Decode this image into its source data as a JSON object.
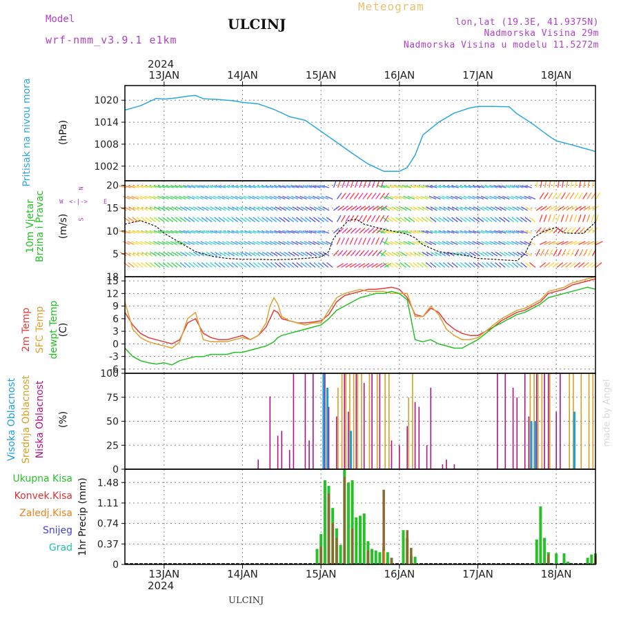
{
  "header": {
    "model_label": "Model",
    "model_name": "wrf-nmm_v3.9.1 e1km",
    "station": "ULCINJ",
    "meteogram_label": "Meteogram",
    "lonlat": "lon,lat (19.3E, 41.9375N)",
    "elev": "Nadmorska Visina 29m",
    "elev_model": "Nadmorska Visina u modelu 11.5272m",
    "year_top": "2024",
    "year_bottom": "2024",
    "footer_station": "ULCINJ",
    "watermark": "made by Angel"
  },
  "colors": {
    "pressure": "#2aa7e0",
    "temp2m": "#e83a3a",
    "sfc_temp": "#e0a030",
    "dewpoint": "#22c022",
    "wind_speed": "#111111",
    "high_cloud": "#1aa0e0",
    "mid_cloud": "#d6a020",
    "low_cloud": "#b0108a",
    "total_precip": "#28c028",
    "conv_precip": "#e03030",
    "strat_precip": "#f08020",
    "snow": "#4040e0",
    "graupel": "#20c0b0"
  },
  "panel_labels": {
    "pressure": [
      "Pritisak na nivou mora",
      "(hPa)"
    ],
    "wind": [
      "10m Vjetar",
      "Brzina i Pravac",
      "(m/s)"
    ],
    "wind_compass": {
      "n": "N",
      "s": "S",
      "w": "W",
      "e": "E"
    },
    "temp": [
      "2m Temp",
      "SFC Temp",
      "dewpt Temp",
      "(C)"
    ],
    "cloud": [
      "Visoka Oblacnost",
      "Srednja Oblacnost",
      "Niska Oblacnost",
      "(%)"
    ],
    "precip_unit": "1hr Precip (mm)",
    "precip_legend": [
      "Ukupna Kisa",
      "Konvek.Kisa",
      "Zaledj.Kisa",
      "Snijeg",
      "Grad"
    ]
  },
  "chart_data": [
    {
      "type": "line",
      "name": "pressure",
      "x_days": [
        12.5,
        12.7,
        12.9,
        13.0,
        13.15,
        13.3,
        13.4,
        13.5,
        13.7,
        13.9,
        14.0,
        14.2,
        14.4,
        14.6,
        14.8,
        15.0,
        15.2,
        15.4,
        15.6,
        15.8,
        16.0,
        16.1,
        16.2,
        16.3,
        16.5,
        16.7,
        16.9,
        17.0,
        17.2,
        17.4,
        17.5,
        17.7,
        17.9,
        18.0,
        18.2,
        18.5
      ],
      "values": [
        1017.3,
        1018.5,
        1020.5,
        1020.3,
        1020.6,
        1021.1,
        1021.3,
        1020.4,
        1020.2,
        1019.8,
        1019.4,
        1019.0,
        1017.5,
        1015.5,
        1014.5,
        1011.5,
        1008.5,
        1005.5,
        1002.6,
        1000.6,
        1000.6,
        1001.6,
        1005.0,
        1010.5,
        1014.0,
        1016.5,
        1017.9,
        1018.3,
        1018.3,
        1018.2,
        1016.3,
        1013.5,
        1010.3,
        1008.9,
        1007.8,
        1006.0
      ],
      "ylim": [
        998,
        1024
      ],
      "yticks": [
        1002,
        1008,
        1014,
        1020
      ]
    },
    {
      "type": "line",
      "name": "wind_speed",
      "x_days": [
        12.5,
        12.7,
        12.9,
        13.0,
        13.2,
        13.4,
        13.6,
        13.8,
        14.0,
        14.2,
        14.4,
        14.6,
        14.8,
        15.0,
        15.1,
        15.15,
        15.25,
        15.35,
        15.45,
        15.55,
        15.7,
        15.85,
        16.0,
        16.1,
        16.2,
        16.3,
        16.5,
        16.7,
        16.9,
        17.0,
        17.2,
        17.4,
        17.5,
        17.6,
        17.7,
        17.85,
        18.0,
        18.1,
        18.2,
        18.35,
        18.5
      ],
      "values": [
        11.5,
        12.3,
        11.0,
        9.5,
        7.5,
        5.5,
        4.5,
        4.0,
        3.8,
        3.8,
        3.7,
        3.8,
        4.0,
        4.3,
        5.5,
        8.0,
        10.5,
        12.3,
        12.6,
        11.5,
        10.8,
        10.2,
        9.7,
        9.3,
        8.5,
        7.0,
        5.5,
        5.0,
        4.5,
        4.0,
        3.8,
        3.6,
        3.5,
        5.0,
        8.5,
        10.0,
        10.8,
        9.6,
        9.5,
        9.5,
        12.0
      ],
      "ylim": [
        0,
        21
      ],
      "yticks": [
        5,
        10,
        15,
        20
      ],
      "extra_tick": 18
    },
    {
      "type": "line",
      "name": "temperature",
      "x_days": [
        12.5,
        12.6,
        12.7,
        12.8,
        12.9,
        13.0,
        13.1,
        13.2,
        13.3,
        13.4,
        13.5,
        13.6,
        13.7,
        13.8,
        13.9,
        14.0,
        14.1,
        14.2,
        14.3,
        14.35,
        14.4,
        14.45,
        14.5,
        14.6,
        14.7,
        14.8,
        14.9,
        15.0,
        15.1,
        15.2,
        15.3,
        15.4,
        15.5,
        15.6,
        15.7,
        15.8,
        15.9,
        16.0,
        16.1,
        16.2,
        16.3,
        16.4,
        16.5,
        16.6,
        16.7,
        16.8,
        16.9,
        17.0,
        17.1,
        17.2,
        17.3,
        17.4,
        17.5,
        17.6,
        17.7,
        17.8,
        17.9,
        18.0,
        18.1,
        18.2,
        18.3,
        18.4,
        18.5
      ],
      "series": [
        {
          "key": "temp2m",
          "values": [
            7.5,
            4.5,
            2.5,
            1.5,
            1.0,
            0.5,
            0.0,
            1.0,
            5.0,
            6.0,
            2.5,
            1.5,
            1.0,
            1.0,
            1.5,
            2.0,
            1.0,
            2.0,
            4.0,
            6.0,
            8.0,
            7.5,
            6.0,
            5.5,
            5.0,
            5.0,
            5.2,
            5.5,
            7.0,
            10.0,
            11.5,
            12.0,
            12.5,
            13.0,
            13.0,
            13.2,
            13.5,
            13.0,
            11.0,
            7.0,
            6.5,
            8.5,
            7.5,
            5.0,
            3.5,
            2.5,
            2.0,
            2.0,
            3.0,
            4.0,
            5.5,
            6.5,
            7.5,
            8.0,
            9.0,
            10.0,
            12.0,
            12.5,
            13.0,
            14.0,
            14.5,
            15.0,
            15.5
          ]
        },
        {
          "key": "sfc_temp",
          "values": [
            10.0,
            3.5,
            1.5,
            0.5,
            0.0,
            -0.5,
            -1.0,
            0.5,
            6.0,
            7.5,
            1.0,
            0.5,
            0.5,
            0.5,
            1.0,
            1.5,
            1.0,
            2.0,
            5.0,
            9.0,
            11.0,
            9.5,
            6.5,
            5.5,
            5.0,
            4.5,
            5.0,
            5.0,
            8.0,
            11.0,
            12.0,
            12.5,
            13.0,
            12.5,
            12.5,
            12.5,
            12.0,
            12.0,
            12.0,
            6.5,
            6.5,
            9.0,
            7.0,
            3.5,
            2.0,
            1.0,
            1.0,
            1.5,
            3.0,
            4.5,
            6.0,
            7.0,
            8.0,
            8.5,
            9.5,
            10.5,
            12.5,
            13.0,
            13.5,
            14.5,
            15.0,
            15.5,
            16.0
          ]
        },
        {
          "key": "dewpoint",
          "values": [
            -1.0,
            -3.0,
            -4.0,
            -4.5,
            -4.8,
            -4.5,
            -5.0,
            -4.0,
            -3.5,
            -3.0,
            -3.0,
            -2.5,
            -2.5,
            -2.5,
            -2.0,
            -2.0,
            -1.5,
            -1.0,
            -0.5,
            0.0,
            0.5,
            1.5,
            2.0,
            2.5,
            3.0,
            3.5,
            4.0,
            4.5,
            6.0,
            8.0,
            9.0,
            10.0,
            11.0,
            11.5,
            12.0,
            12.0,
            12.5,
            12.0,
            10.5,
            1.0,
            0.5,
            1.0,
            0.0,
            -0.5,
            -1.0,
            -1.0,
            0.0,
            1.0,
            2.5,
            4.0,
            5.0,
            6.0,
            7.0,
            7.5,
            8.5,
            9.5,
            11.0,
            11.5,
            12.0,
            12.5,
            13.0,
            13.5,
            13.0
          ]
        }
      ],
      "ylim": [
        -7,
        16
      ],
      "yticks": [
        -6,
        -3,
        0,
        3,
        6,
        9,
        12,
        15
      ]
    },
    {
      "type": "bar",
      "name": "cloud_cover",
      "ylim": [
        0,
        100
      ],
      "yticks": [
        0,
        25,
        50,
        75,
        100
      ],
      "low_cloud_bars": [
        [
          14.2,
          10
        ],
        [
          14.35,
          76
        ],
        [
          14.45,
          35
        ],
        [
          14.5,
          40
        ],
        [
          14.6,
          20
        ],
        [
          14.65,
          100
        ],
        [
          14.8,
          100
        ],
        [
          14.85,
          30
        ],
        [
          14.9,
          100
        ],
        [
          15.05,
          100
        ],
        [
          15.1,
          65
        ],
        [
          15.2,
          55
        ],
        [
          15.3,
          100
        ],
        [
          15.35,
          60
        ],
        [
          15.45,
          100
        ],
        [
          15.55,
          90
        ],
        [
          15.65,
          100
        ],
        [
          15.75,
          100
        ],
        [
          15.9,
          30
        ],
        [
          16.0,
          25
        ],
        [
          16.1,
          45
        ],
        [
          16.2,
          70
        ],
        [
          16.25,
          65
        ],
        [
          16.35,
          25
        ],
        [
          16.4,
          85
        ],
        [
          16.55,
          5
        ],
        [
          16.6,
          10
        ],
        [
          16.7,
          5
        ],
        [
          17.25,
          100
        ],
        [
          17.35,
          100
        ],
        [
          17.45,
          85
        ],
        [
          17.5,
          75
        ],
        [
          17.6,
          100
        ],
        [
          17.65,
          55
        ],
        [
          17.75,
          100
        ],
        [
          17.85,
          100
        ],
        [
          17.9,
          100
        ],
        [
          18.0,
          60
        ],
        [
          18.05,
          100
        ]
      ],
      "mid_cloud_bars": [
        [
          15.2,
          85
        ],
        [
          15.25,
          100
        ],
        [
          15.3,
          100
        ],
        [
          15.35,
          100
        ],
        [
          15.4,
          100
        ],
        [
          15.45,
          100
        ],
        [
          15.5,
          100
        ],
        [
          15.6,
          100
        ],
        [
          15.7,
          100
        ],
        [
          15.8,
          100
        ],
        [
          15.85,
          100
        ],
        [
          16.1,
          75
        ],
        [
          16.15,
          100
        ],
        [
          17.65,
          100
        ],
        [
          17.7,
          100
        ],
        [
          17.75,
          100
        ],
        [
          17.8,
          100
        ],
        [
          17.9,
          100
        ],
        [
          18.15,
          100
        ],
        [
          18.2,
          100
        ],
        [
          18.3,
          100
        ],
        [
          18.4,
          100
        ],
        [
          18.45,
          100
        ]
      ],
      "high_cloud_bars": [
        [
          15.05,
          100
        ],
        [
          15.1,
          85
        ],
        [
          15.4,
          40
        ],
        [
          17.7,
          50
        ],
        [
          17.75,
          50
        ],
        [
          18.25,
          60
        ]
      ]
    },
    {
      "type": "bar",
      "name": "precip_1hr",
      "ylim": [
        0,
        1.72
      ],
      "yticks": [
        0,
        0.37,
        0.74,
        1.11,
        1.48
      ],
      "total_bars": [
        [
          14.95,
          0.28
        ],
        [
          15.0,
          0.55
        ],
        [
          15.05,
          1.52
        ],
        [
          15.1,
          1.42
        ],
        [
          15.15,
          1.02
        ],
        [
          15.2,
          0.65
        ],
        [
          15.25,
          0.35
        ],
        [
          15.3,
          1.73
        ],
        [
          15.35,
          1.48
        ],
        [
          15.4,
          1.52
        ],
        [
          15.45,
          0.85
        ],
        [
          15.5,
          0.88
        ],
        [
          15.55,
          0.92
        ],
        [
          15.6,
          0.42
        ],
        [
          15.65,
          0.28
        ],
        [
          15.7,
          0.25
        ],
        [
          15.75,
          0.22
        ],
        [
          15.8,
          0.32
        ],
        [
          15.85,
          0.22
        ],
        [
          15.9,
          0.12
        ],
        [
          16.05,
          0.62
        ],
        [
          16.1,
          0.48
        ],
        [
          16.15,
          0.15
        ],
        [
          16.2,
          0.14
        ],
        [
          17.75,
          0.45
        ],
        [
          17.8,
          1.05
        ],
        [
          17.85,
          0.48
        ],
        [
          17.9,
          0.22
        ],
        [
          18.0,
          0.2
        ],
        [
          18.1,
          0.2
        ],
        [
          18.15,
          0.05
        ],
        [
          18.4,
          0.12
        ],
        [
          18.45,
          0.18
        ],
        [
          18.5,
          0.2
        ]
      ],
      "conv_bars": [
        [
          15.0,
          0.32
        ],
        [
          15.1,
          1.28
        ],
        [
          15.15,
          0.75
        ],
        [
          15.2,
          0.48
        ],
        [
          15.3,
          1.58
        ],
        [
          15.4,
          0.65
        ],
        [
          15.6,
          0.25
        ],
        [
          15.8,
          1.35
        ],
        [
          15.9,
          0.12
        ],
        [
          16.1,
          0.62
        ],
        [
          16.15,
          0.3
        ],
        [
          17.9,
          0.18
        ],
        [
          18.5,
          0.15
        ]
      ],
      "strat_bars": [
        [
          15.8,
          0.25
        ]
      ]
    }
  ],
  "x_axis": {
    "start_day": 12.5,
    "end_day": 18.5,
    "day_labels": [
      "13JAN",
      "14JAN",
      "15JAN",
      "16JAN",
      "17JAN",
      "18JAN"
    ],
    "day_values": [
      13,
      14,
      15,
      16,
      17,
      18
    ]
  }
}
